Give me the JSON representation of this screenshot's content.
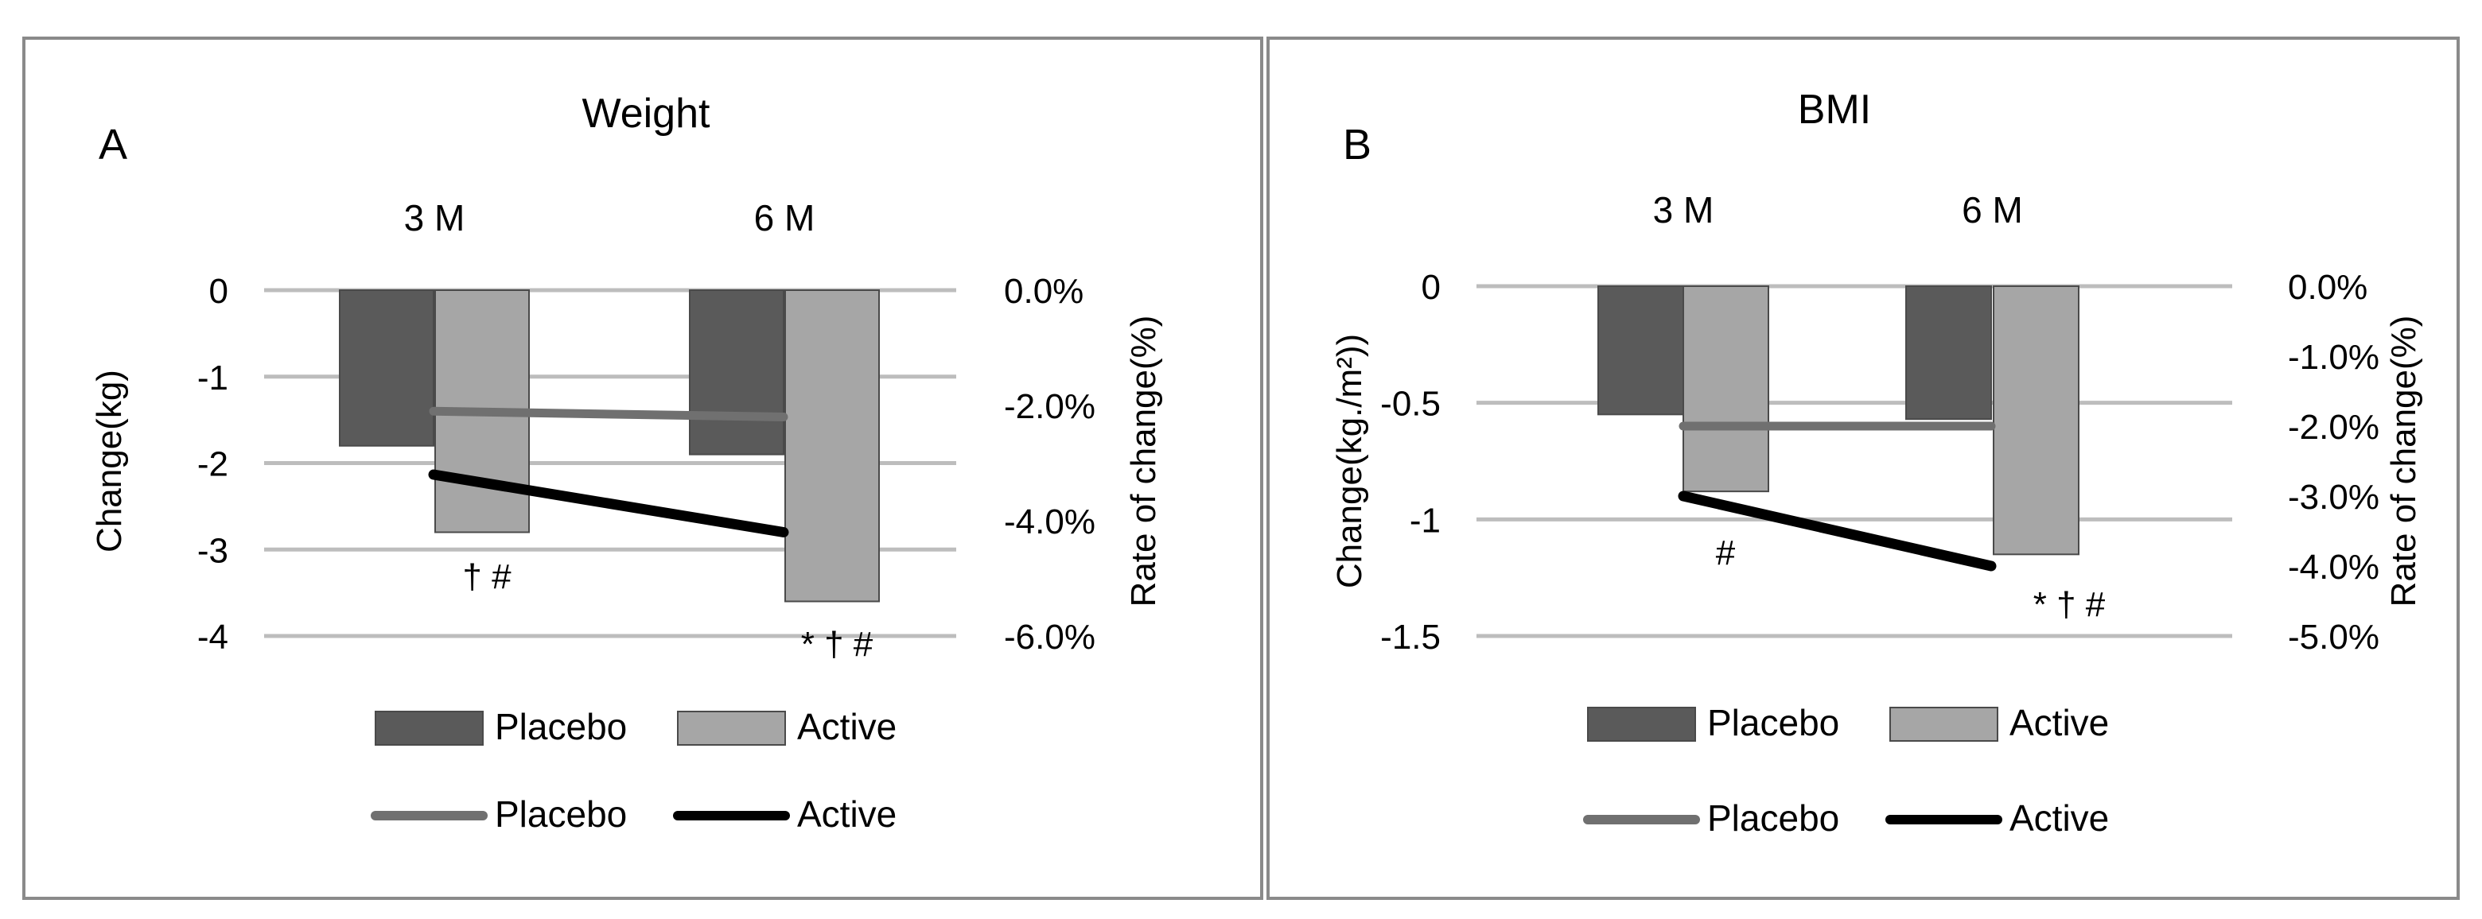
{
  "chart_data": [
    {
      "type": "bar",
      "panel_label": "A",
      "title": "Weight",
      "categories": [
        "3 M",
        "6 M"
      ],
      "ylabel": "Change(kg)",
      "ylim": [
        -4,
        0
      ],
      "yticks": [
        0,
        -1,
        -2,
        -3,
        -4
      ],
      "ytick_labels": [
        "0",
        "-1",
        "-2",
        "-3",
        "-4"
      ],
      "y2label": "Rate of change(%)",
      "y2lim": [
        -6,
        0
      ],
      "y2ticks": [
        0,
        -2,
        -4,
        -6
      ],
      "y2tick_labels": [
        "0.0%",
        "-2.0%",
        "-4.0%",
        "-6.0%"
      ],
      "series": [
        {
          "name": "Placebo",
          "kind": "bar",
          "axis": "left",
          "values": [
            -1.8,
            -1.9
          ],
          "color": "#5a5a5a"
        },
        {
          "name": "Active",
          "kind": "bar",
          "axis": "left",
          "values": [
            -2.8,
            -3.6
          ],
          "color": "#a6a6a6"
        },
        {
          "name": "Placebo",
          "kind": "line",
          "axis": "right",
          "values": [
            -2.1,
            -2.2
          ],
          "color": "#707070"
        },
        {
          "name": "Active",
          "kind": "line",
          "axis": "right",
          "values": [
            -3.2,
            -4.2
          ],
          "color": "#000000"
        }
      ],
      "annotations": [
        {
          "category": 0,
          "text": "† #"
        },
        {
          "category": 1,
          "text": "* † #"
        }
      ],
      "legend": "bottom",
      "grid": true
    },
    {
      "type": "bar",
      "panel_label": "B",
      "title": "BMI",
      "categories": [
        "3 M",
        "6 M"
      ],
      "ylabel": "Change(kg./m²))",
      "ylim": [
        -1.5,
        0
      ],
      "yticks": [
        0,
        -0.5,
        -1,
        -1.5
      ],
      "ytick_labels": [
        "0",
        "-0.5",
        "-1",
        "-1.5"
      ],
      "y2label": "Rate of change(%)",
      "y2lim": [
        -5,
        0
      ],
      "y2ticks": [
        0,
        -1,
        -2,
        -3,
        -4,
        -5
      ],
      "y2tick_labels": [
        "0.0%",
        "-1.0%",
        "-2.0%",
        "-3.0%",
        "-4.0%",
        "-5.0%"
      ],
      "series": [
        {
          "name": "Placebo",
          "kind": "bar",
          "axis": "left",
          "values": [
            -0.55,
            -0.57
          ],
          "color": "#5a5a5a"
        },
        {
          "name": "Active",
          "kind": "bar",
          "axis": "left",
          "values": [
            -0.88,
            -1.15
          ],
          "color": "#a6a6a6"
        },
        {
          "name": "Placebo",
          "kind": "line",
          "axis": "right",
          "values": [
            -2.0,
            -2.0
          ],
          "color": "#707070"
        },
        {
          "name": "Active",
          "kind": "line",
          "axis": "right",
          "values": [
            -3.0,
            -4.0
          ],
          "color": "#000000"
        }
      ],
      "annotations": [
        {
          "category": 0,
          "text": "#"
        },
        {
          "category": 1,
          "text": "* † #"
        }
      ],
      "legend": "bottom",
      "grid": true
    }
  ]
}
